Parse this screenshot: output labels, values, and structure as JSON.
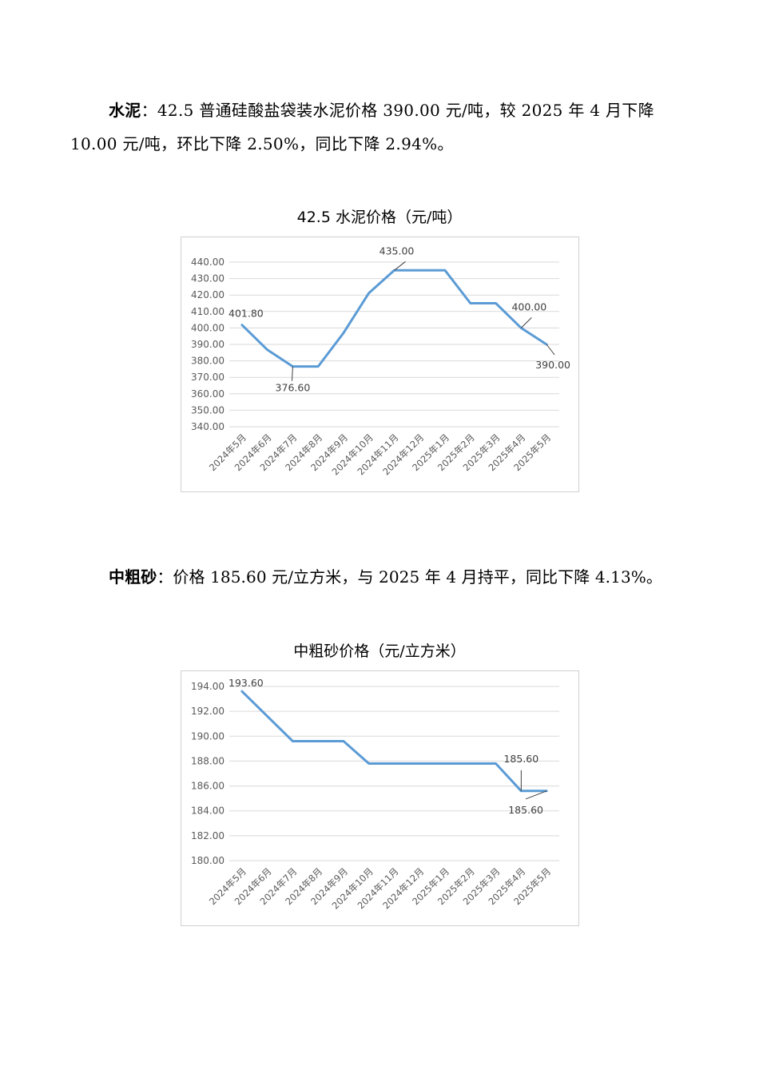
{
  "section1": {
    "label": "水泥",
    "text": "：42.5 普通硅酸盐袋装水泥价格 390.00 元/吨，较 2025 年 4 月下降 10.00 元/吨，环比下降 2.50%，同比下降 2.94%。"
  },
  "section2": {
    "label": "中粗砂",
    "text": "：价格 185.60 元/立方米，与 2025 年 4 月持平，同比下降 4.13%。"
  },
  "chart_data": [
    {
      "type": "line",
      "title": "42.5 水泥价格（元/吨）",
      "categories": [
        "2024年5月",
        "2024年6月",
        "2024年7月",
        "2024年8月",
        "2024年9月",
        "2024年10月",
        "2024年11月",
        "2024年12月",
        "2025年1月",
        "2025年2月",
        "2025年3月",
        "2025年4月",
        "2025年5月"
      ],
      "series": [
        {
          "values": [
            401.8,
            386.7,
            376.6,
            376.6,
            397.0,
            421.2,
            435.0,
            435.0,
            435.0,
            415.0,
            415.0,
            400.0,
            390.0
          ]
        }
      ],
      "ylim": [
        340,
        440
      ],
      "yticks": [
        "340.00",
        "350.00",
        "360.00",
        "370.00",
        "380.00",
        "390.00",
        "400.00",
        "410.00",
        "420.00",
        "430.00",
        "440.00"
      ],
      "data_labels": [
        {
          "index": 0,
          "text": "401.80",
          "placement": "above"
        },
        {
          "index": 2,
          "text": "376.60",
          "placement": "below"
        },
        {
          "index": 6,
          "text": "435.00",
          "placement": "above"
        },
        {
          "index": 11,
          "text": "400.00",
          "placement": "above-right"
        },
        {
          "index": 12,
          "text": "390.00",
          "placement": "below"
        }
      ],
      "grid": true,
      "color": "#5b9bd5"
    },
    {
      "type": "line",
      "title": "中粗砂价格（元/立方米）",
      "categories": [
        "2024年5月",
        "2024年6月",
        "2024年7月",
        "2024年8月",
        "2024年9月",
        "2024年10月",
        "2024年11月",
        "2024年12月",
        "2025年1月",
        "2025年2月",
        "2025年3月",
        "2025年4月",
        "2025年5月"
      ],
      "series": [
        {
          "values": [
            193.6,
            191.6,
            189.6,
            189.6,
            189.6,
            187.8,
            187.8,
            187.8,
            187.8,
            187.8,
            187.8,
            185.6,
            185.6
          ]
        }
      ],
      "ylim": [
        180,
        194
      ],
      "yticks": [
        "180.00",
        "182.00",
        "184.00",
        "186.00",
        "188.00",
        "190.00",
        "192.00",
        "194.00"
      ],
      "data_labels": [
        {
          "index": 0,
          "text": "193.60",
          "placement": "above"
        },
        {
          "index": 11,
          "text": "185.60",
          "placement": "above"
        },
        {
          "index": 12,
          "text": "185.60",
          "placement": "below"
        }
      ],
      "grid": true,
      "color": "#5b9bd5"
    }
  ]
}
